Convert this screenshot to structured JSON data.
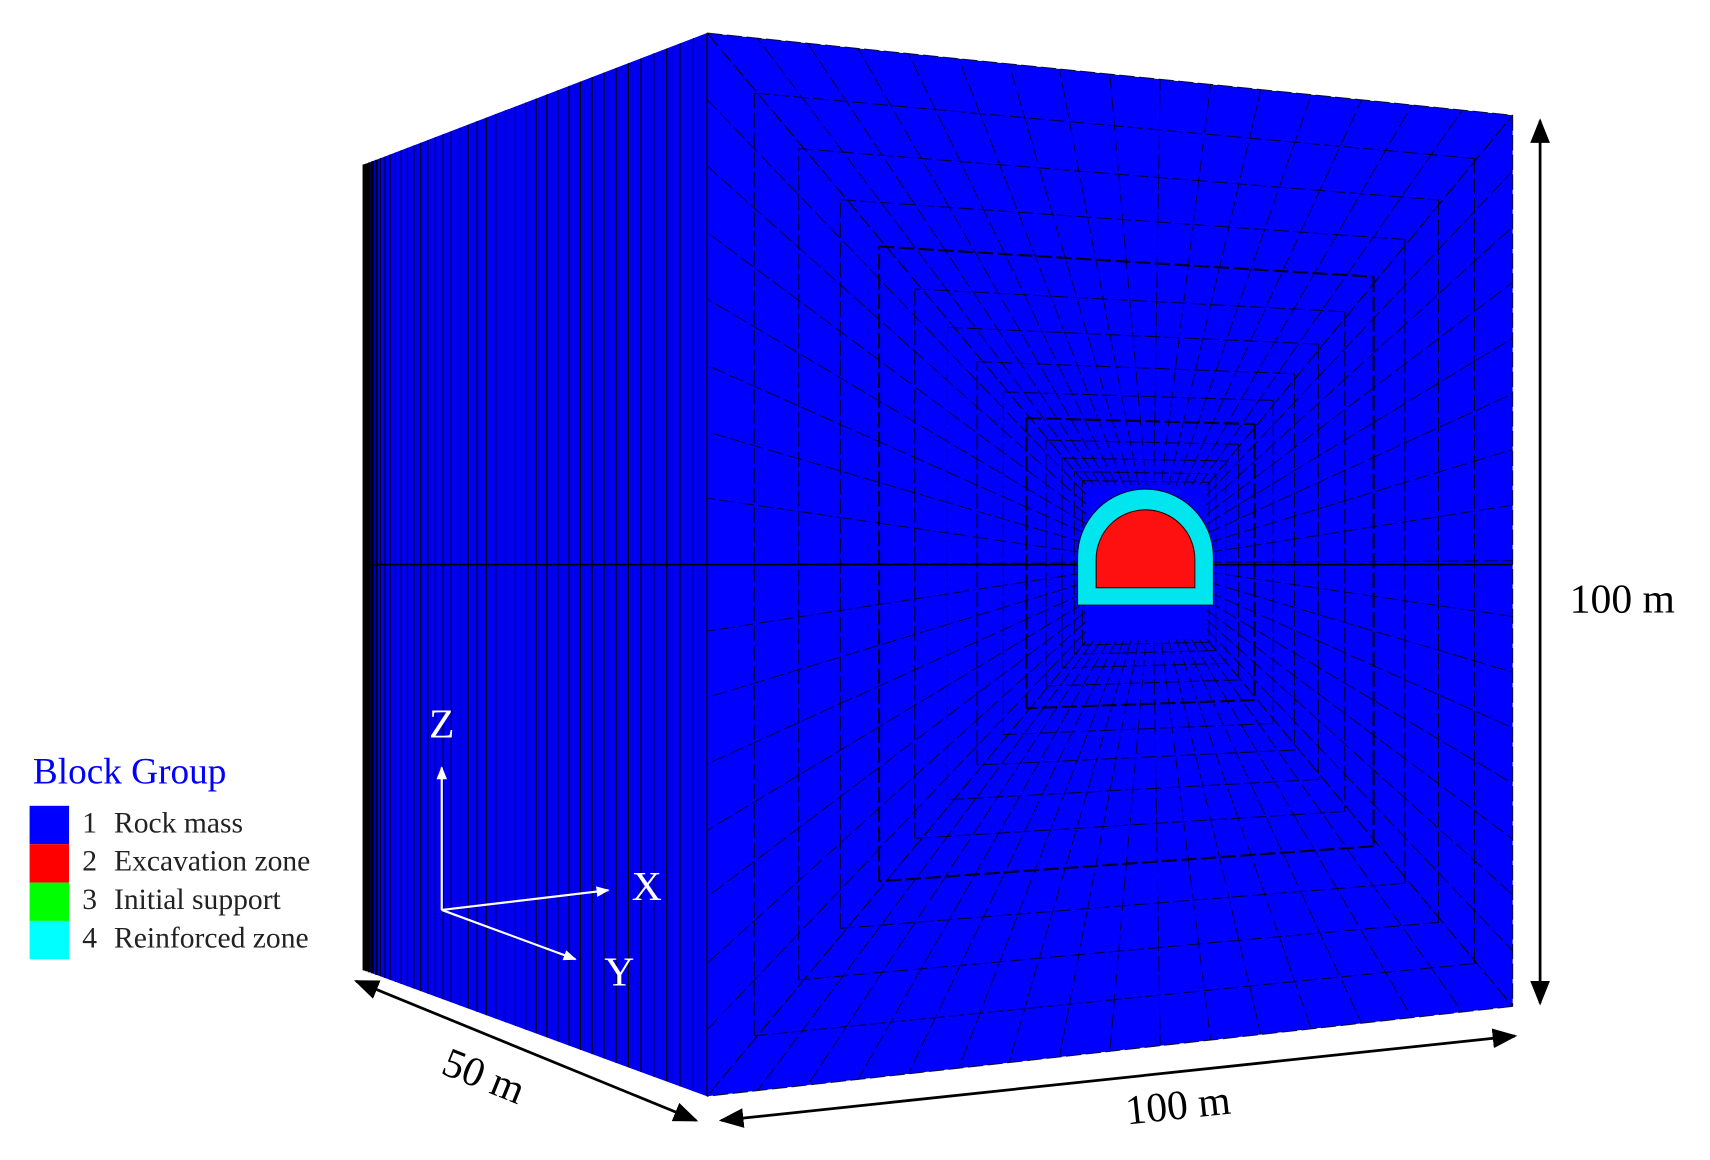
{
  "legend": {
    "title": "Block Group",
    "items": [
      {
        "number": "1",
        "label": "Rock mass",
        "color": "#0000ff"
      },
      {
        "number": "2",
        "label": "Excavation zone",
        "color": "#ff0000"
      },
      {
        "number": "3",
        "label": "Initial support",
        "color": "#00ff00"
      },
      {
        "number": "4",
        "label": "Reinforced zone",
        "color": "#00ffff"
      }
    ]
  },
  "axes": {
    "z": "Z",
    "x": "X",
    "y": "Y"
  },
  "dimensions": {
    "height": "100 m",
    "depth": "50 m",
    "width": "100 m"
  }
}
